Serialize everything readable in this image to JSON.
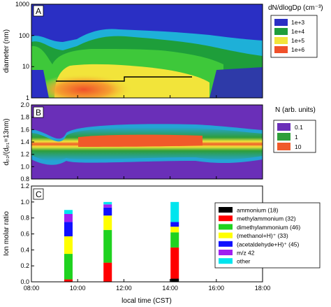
{
  "chart_data": [
    {
      "panel": "A",
      "type": "heatmap",
      "ylabel": "diameter (nm)",
      "yscale": "log",
      "ylim": [
        1,
        1000
      ],
      "y_ticks": [
        "1",
        "10",
        "100",
        "1000"
      ],
      "xlim": [
        8,
        18
      ],
      "colorbar_title": "dN/dlogDp (cm⁻³)",
      "colorbar_labels": [
        "1e+3",
        "1e+4",
        "1e+5",
        "1e+6"
      ],
      "colorbar_colors": [
        "#2a2fc4",
        "#1e9e3a",
        "#f2e43a",
        "#f0502a"
      ],
      "line": {
        "x": [
          9.5,
          11.8,
          11.8,
          14.5
        ],
        "y": [
          8,
          8,
          9,
          9
        ]
      }
    },
    {
      "panel": "B",
      "type": "heatmap",
      "ylabel": "dₚ₂/(dₚ₁=13nm)",
      "ylim": [
        0.8,
        2.0
      ],
      "y_ticks": [
        "0.8",
        "1.0",
        "1.2",
        "1.4",
        "1.6",
        "1.8",
        "2.0"
      ],
      "xlim": [
        8,
        18
      ],
      "colorbar_title": "N (arb. units)",
      "colorbar_labels": [
        "0.1",
        "1",
        "10"
      ],
      "colorbar_colors": [
        "#6a2fb8",
        "#2e9e3a",
        "#f05a2a"
      ]
    },
    {
      "panel": "C",
      "type": "bar",
      "stacked": true,
      "ylabel": "Ion molar ratio",
      "xlabel": "local time (CST)",
      "ylim": [
        0,
        1.2
      ],
      "y_ticks": [
        "0.0",
        "0.2",
        "0.4",
        "0.6",
        "0.8",
        "1.0",
        "1.2"
      ],
      "xlim": [
        8,
        18
      ],
      "x_ticks": [
        "08:00",
        "10:00",
        "12:00",
        "14:00",
        "16:00",
        "18:00"
      ],
      "x": [
        9.6,
        11.3,
        14.2
      ],
      "series": [
        {
          "name": "ammonium (18)",
          "color": "#000000",
          "values": [
            0.0,
            0.0,
            0.04
          ]
        },
        {
          "name": "methylammonium (32)",
          "color": "#ff0000",
          "values": [
            0.03,
            0.24,
            0.39
          ]
        },
        {
          "name": "dimethylammonium (46)",
          "color": "#1fd21f",
          "values": [
            0.32,
            0.41,
            0.19
          ]
        },
        {
          "name": "(methanol+H)⁺ (33)",
          "color": "#ffff00",
          "values": [
            0.22,
            0.18,
            0.07
          ]
        },
        {
          "name": "(acetaldehyde+H)⁺ (45)",
          "color": "#1010ff",
          "values": [
            0.18,
            0.1,
            0.06
          ]
        },
        {
          "name": "m/z 42",
          "color": "#a020f0",
          "values": [
            0.1,
            0.04,
            0.0
          ]
        },
        {
          "name": "other",
          "color": "#00e5ee",
          "values": [
            0.05,
            0.03,
            0.25
          ]
        }
      ]
    }
  ]
}
